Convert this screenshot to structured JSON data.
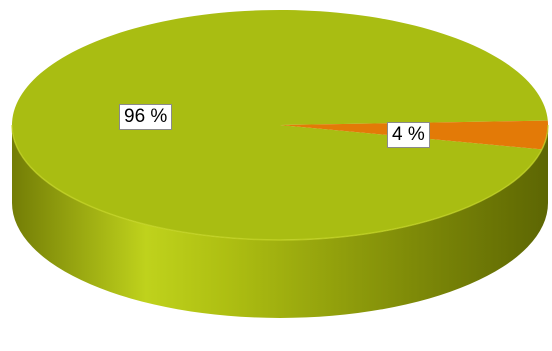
{
  "chart_data": {
    "type": "pie",
    "style": "3d",
    "title": "",
    "legend": "none",
    "slices": [
      {
        "value": 96,
        "label": "96 %",
        "color": "#a9bd12"
      },
      {
        "value": 4,
        "label": "4 %",
        "color": "#e37a07"
      }
    ]
  }
}
